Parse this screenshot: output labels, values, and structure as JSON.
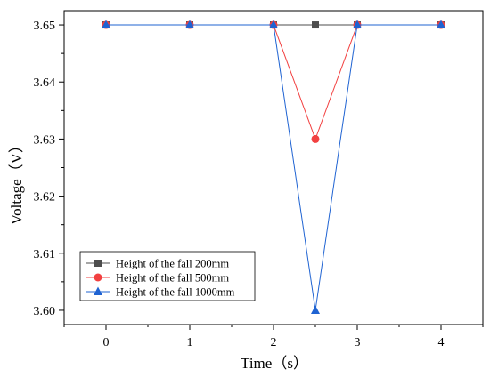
{
  "chart_data": {
    "type": "line",
    "xlabel": "Time（s）",
    "ylabel": "Voltage（V）",
    "xlim": [
      -0.5,
      4.5
    ],
    "ylim": [
      3.5975,
      3.6525
    ],
    "xticks": [
      "0",
      "1",
      "2",
      "3",
      "4"
    ],
    "yticks": [
      "3.60",
      "3.61",
      "3.62",
      "3.63",
      "3.64",
      "3.65"
    ],
    "grid": false,
    "legend_position": "bottom-left",
    "series": [
      {
        "name": "Height of the fall 200mm",
        "color": "#4d4d4d",
        "marker": "square",
        "x": [
          0,
          1,
          2,
          2.5,
          3,
          4
        ],
        "y": [
          3.65,
          3.65,
          3.65,
          3.65,
          3.65,
          3.65
        ]
      },
      {
        "name": "Height of the fall 500mm",
        "color": "#f24040",
        "marker": "circle",
        "x": [
          0,
          1,
          2,
          2.5,
          3,
          4
        ],
        "y": [
          3.65,
          3.65,
          3.65,
          3.63,
          3.65,
          3.65
        ]
      },
      {
        "name": "Height of the fall 1000mm",
        "color": "#1f63d2",
        "marker": "triangle",
        "x": [
          0,
          1,
          2,
          2.5,
          3,
          4
        ],
        "y": [
          3.65,
          3.65,
          3.65,
          3.6,
          3.65,
          3.65
        ]
      }
    ]
  }
}
